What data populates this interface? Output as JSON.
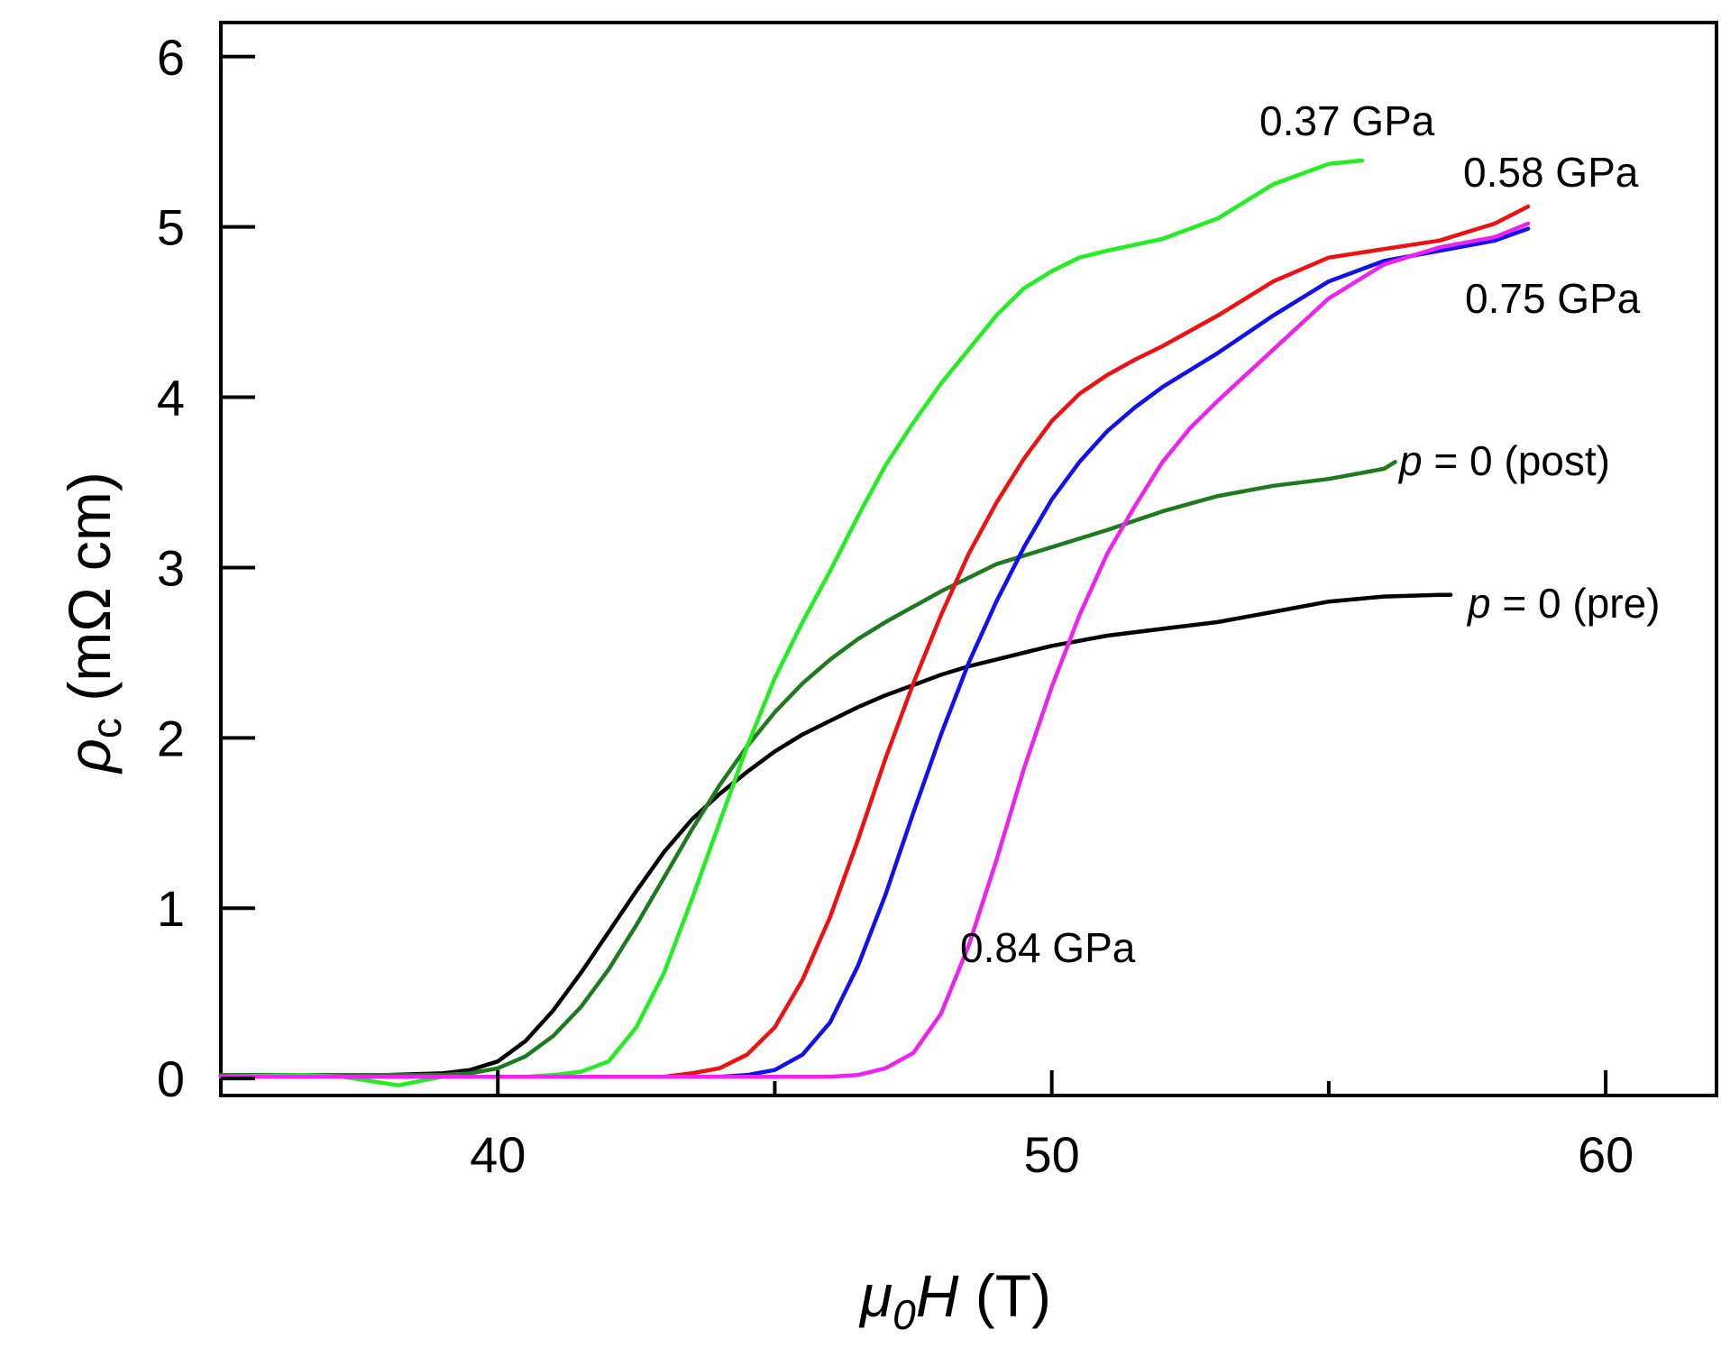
{
  "chart_data": {
    "type": "line",
    "title": "",
    "xlabel": {
      "symbol": "μ",
      "sub": "0",
      "var": "H",
      "unit": " (T)"
    },
    "ylabel": {
      "symbol": "ρ",
      "sub": "c",
      "unit": " (mΩ cm)"
    },
    "xlim": [
      35,
      62
    ],
    "ylim": [
      -0.1,
      6.2
    ],
    "xticks": [
      40,
      50,
      60
    ],
    "xtick_labels": [
      "40",
      "50",
      "60"
    ],
    "yticks": [
      0,
      1,
      2,
      3,
      4,
      5,
      6
    ],
    "ytick_labels": [
      "0",
      "1",
      "2",
      "3",
      "4",
      "5",
      "6"
    ],
    "grid": false,
    "legend": "inline labels at line ends",
    "series": [
      {
        "name": "p = 0 (pre)",
        "label_parts": [
          {
            "t": "p",
            "i": true
          },
          {
            "t": " = 0 (pre)",
            "i": false
          }
        ],
        "color": "#000000",
        "points": [
          [
            35,
            0.02
          ],
          [
            38,
            0.02
          ],
          [
            39,
            0.03
          ],
          [
            39.5,
            0.05
          ],
          [
            40,
            0.1
          ],
          [
            40.5,
            0.22
          ],
          [
            41,
            0.4
          ],
          [
            41.5,
            0.62
          ],
          [
            42,
            0.86
          ],
          [
            42.5,
            1.1
          ],
          [
            43,
            1.33
          ],
          [
            43.5,
            1.52
          ],
          [
            44,
            1.67
          ],
          [
            44.5,
            1.8
          ],
          [
            45,
            1.92
          ],
          [
            45.5,
            2.02
          ],
          [
            46,
            2.1
          ],
          [
            46.5,
            2.18
          ],
          [
            47,
            2.25
          ],
          [
            47.5,
            2.31
          ],
          [
            48,
            2.37
          ],
          [
            48.5,
            2.42
          ],
          [
            49,
            2.46
          ],
          [
            50,
            2.54
          ],
          [
            51,
            2.6
          ],
          [
            52,
            2.64
          ],
          [
            53,
            2.68
          ],
          [
            54,
            2.74
          ],
          [
            55,
            2.8
          ],
          [
            56,
            2.83
          ],
          [
            57,
            2.84
          ],
          [
            57.2,
            2.84
          ]
        ]
      },
      {
        "name": "p = 0 (post)",
        "label_parts": [
          {
            "t": "p",
            "i": true
          },
          {
            "t": " = 0 (post)",
            "i": false
          }
        ],
        "color": "#1e7a1e",
        "points": [
          [
            35,
            0.02
          ],
          [
            39,
            0.02
          ],
          [
            39.5,
            0.03
          ],
          [
            40,
            0.06
          ],
          [
            40.5,
            0.13
          ],
          [
            41,
            0.25
          ],
          [
            41.5,
            0.42
          ],
          [
            42,
            0.64
          ],
          [
            42.5,
            0.9
          ],
          [
            43,
            1.18
          ],
          [
            43.5,
            1.46
          ],
          [
            44,
            1.72
          ],
          [
            44.5,
            1.95
          ],
          [
            45,
            2.15
          ],
          [
            45.5,
            2.32
          ],
          [
            46,
            2.46
          ],
          [
            46.5,
            2.58
          ],
          [
            47,
            2.68
          ],
          [
            48,
            2.86
          ],
          [
            49,
            3.02
          ],
          [
            50,
            3.12
          ],
          [
            51,
            3.22
          ],
          [
            52,
            3.33
          ],
          [
            53,
            3.42
          ],
          [
            54,
            3.48
          ],
          [
            55,
            3.52
          ],
          [
            56,
            3.58
          ],
          [
            56.2,
            3.62
          ]
        ]
      },
      {
        "name": "0.37 GPa",
        "label_parts": [
          {
            "t": "0.37 GPa",
            "i": false
          }
        ],
        "color": "#22ee22",
        "points": [
          [
            35,
            0.01
          ],
          [
            36.5,
            0.02
          ],
          [
            37.2,
            0.01
          ],
          [
            38.2,
            -0.04
          ],
          [
            39,
            0.01
          ],
          [
            40.5,
            0.01
          ],
          [
            41,
            0.02
          ],
          [
            41.5,
            0.04
          ],
          [
            42,
            0.1
          ],
          [
            42.5,
            0.3
          ],
          [
            43,
            0.62
          ],
          [
            43.5,
            1.05
          ],
          [
            44,
            1.5
          ],
          [
            44.5,
            1.95
          ],
          [
            45,
            2.35
          ],
          [
            45.5,
            2.68
          ],
          [
            46,
            2.98
          ],
          [
            46.5,
            3.3
          ],
          [
            47,
            3.6
          ],
          [
            47.5,
            3.85
          ],
          [
            48,
            4.08
          ],
          [
            48.5,
            4.28
          ],
          [
            49,
            4.48
          ],
          [
            49.5,
            4.64
          ],
          [
            50,
            4.74
          ],
          [
            50.5,
            4.82
          ],
          [
            51,
            4.86
          ],
          [
            52,
            4.93
          ],
          [
            53,
            5.05
          ],
          [
            54,
            5.25
          ],
          [
            55,
            5.37
          ],
          [
            55.6,
            5.39
          ]
        ]
      },
      {
        "name": "0.58 GPa",
        "label_parts": [
          {
            "t": "0.58 GPa",
            "i": false
          }
        ],
        "color": "#ee1111",
        "points": [
          [
            35,
            0.01
          ],
          [
            43,
            0.01
          ],
          [
            43.5,
            0.03
          ],
          [
            44,
            0.06
          ],
          [
            44.5,
            0.14
          ],
          [
            45,
            0.3
          ],
          [
            45.5,
            0.58
          ],
          [
            46,
            0.95
          ],
          [
            46.5,
            1.4
          ],
          [
            47,
            1.88
          ],
          [
            47.5,
            2.32
          ],
          [
            48,
            2.72
          ],
          [
            48.5,
            3.08
          ],
          [
            49,
            3.38
          ],
          [
            49.5,
            3.64
          ],
          [
            50,
            3.86
          ],
          [
            50.5,
            4.02
          ],
          [
            51,
            4.13
          ],
          [
            51.5,
            4.22
          ],
          [
            52,
            4.3
          ],
          [
            53,
            4.48
          ],
          [
            54,
            4.68
          ],
          [
            55,
            4.82
          ],
          [
            56,
            4.87
          ],
          [
            57,
            4.92
          ],
          [
            58,
            5.02
          ],
          [
            58.6,
            5.12
          ]
        ]
      },
      {
        "name": "0.75 GPa",
        "label_parts": [
          {
            "t": "0.75 GPa",
            "i": false
          }
        ],
        "color": "#1111ee",
        "points": [
          [
            35,
            0.01
          ],
          [
            44,
            0.01
          ],
          [
            44.5,
            0.02
          ],
          [
            45,
            0.05
          ],
          [
            45.5,
            0.14
          ],
          [
            46,
            0.33
          ],
          [
            46.5,
            0.66
          ],
          [
            47,
            1.08
          ],
          [
            47.5,
            1.56
          ],
          [
            48,
            2.02
          ],
          [
            48.5,
            2.44
          ],
          [
            49,
            2.8
          ],
          [
            49.5,
            3.12
          ],
          [
            50,
            3.4
          ],
          [
            50.5,
            3.62
          ],
          [
            51,
            3.8
          ],
          [
            51.5,
            3.94
          ],
          [
            52,
            4.06
          ],
          [
            52.5,
            4.16
          ],
          [
            53,
            4.26
          ],
          [
            54,
            4.48
          ],
          [
            55,
            4.68
          ],
          [
            56,
            4.8
          ],
          [
            57,
            4.86
          ],
          [
            58,
            4.92
          ],
          [
            58.6,
            4.99
          ]
        ]
      },
      {
        "name": "0.84 GPa",
        "label_parts": [
          {
            "t": "0.84 GPa",
            "i": false
          }
        ],
        "color": "#ee22ee",
        "points": [
          [
            35,
            0.01
          ],
          [
            46,
            0.01
          ],
          [
            46.5,
            0.02
          ],
          [
            47,
            0.06
          ],
          [
            47.5,
            0.15
          ],
          [
            48,
            0.38
          ],
          [
            48.5,
            0.78
          ],
          [
            49,
            1.28
          ],
          [
            49.5,
            1.82
          ],
          [
            50,
            2.3
          ],
          [
            50.5,
            2.72
          ],
          [
            51,
            3.08
          ],
          [
            51.5,
            3.36
          ],
          [
            52,
            3.62
          ],
          [
            52.5,
            3.82
          ],
          [
            53,
            3.98
          ],
          [
            54,
            4.28
          ],
          [
            55,
            4.58
          ],
          [
            56,
            4.78
          ],
          [
            57,
            4.88
          ],
          [
            58,
            4.94
          ],
          [
            58.6,
            5.02
          ]
        ]
      }
    ]
  }
}
